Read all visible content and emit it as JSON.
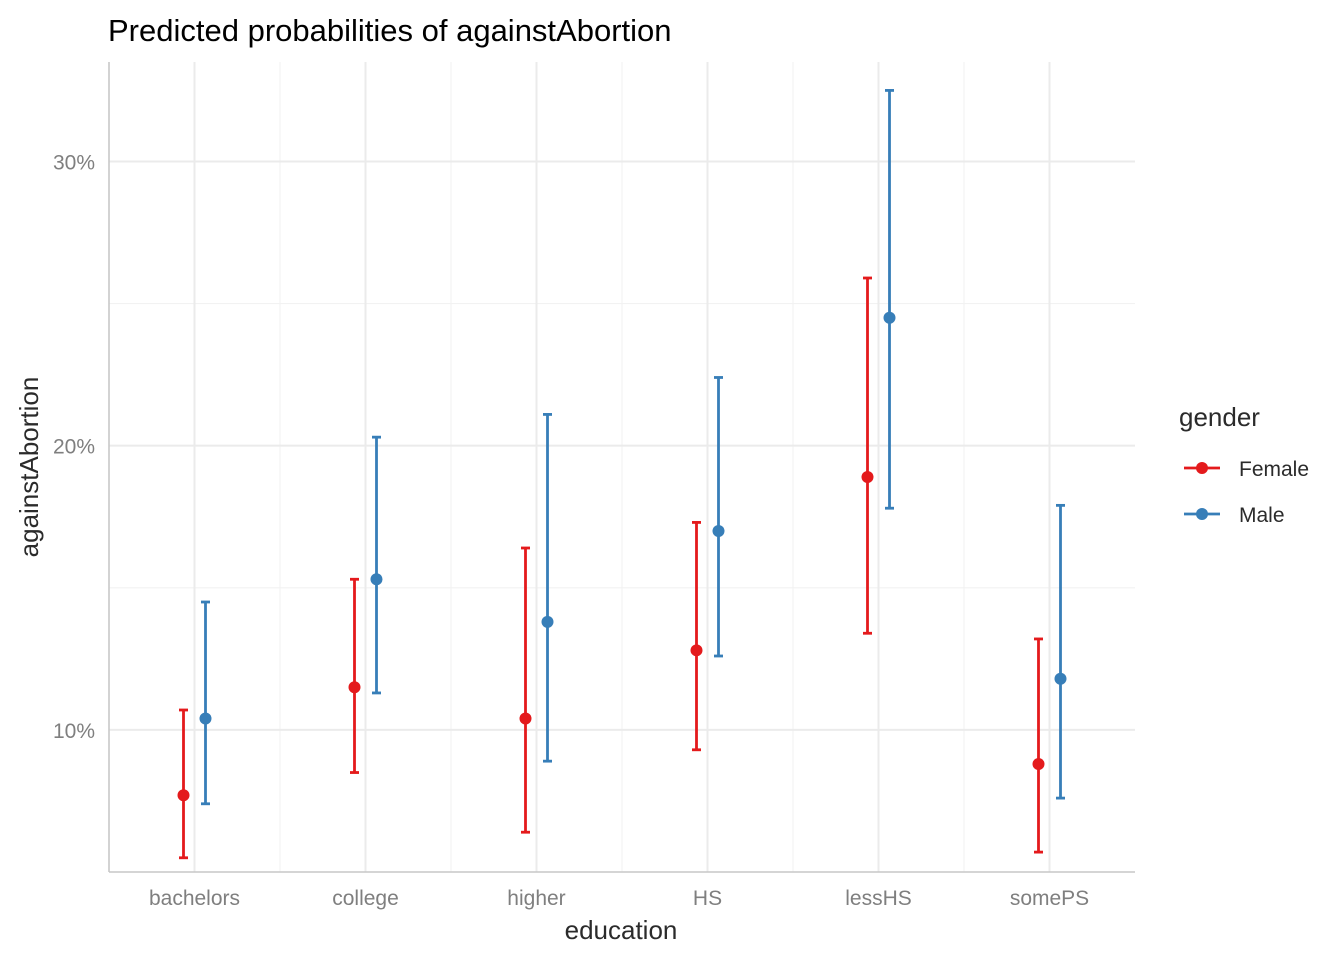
{
  "chart_data": {
    "type": "errorbar",
    "title": "Predicted probabilities of againstAbortion",
    "xlabel": "education",
    "ylabel": "againstAbortion",
    "categories": [
      "bachelors",
      "college",
      "higher",
      "HS",
      "lessHS",
      "somePS"
    ],
    "ylim": [
      0.05,
      0.335
    ],
    "y_ticks": [
      0.1,
      0.2,
      0.3
    ],
    "y_tick_labels": [
      "10%",
      "20%",
      "30%"
    ],
    "grid": true,
    "legend": {
      "title": "gender",
      "position": "right"
    },
    "series": [
      {
        "name": "Female",
        "color": "#E41A1C",
        "values": [
          0.077,
          0.115,
          0.104,
          0.128,
          0.189,
          0.088
        ],
        "lower": [
          0.055,
          0.085,
          0.064,
          0.093,
          0.134,
          0.057
        ],
        "upper": [
          0.107,
          0.153,
          0.164,
          0.173,
          0.259,
          0.132
        ]
      },
      {
        "name": "Male",
        "color": "#377EB8",
        "values": [
          0.104,
          0.153,
          0.138,
          0.17,
          0.245,
          0.118
        ],
        "lower": [
          0.074,
          0.113,
          0.089,
          0.126,
          0.178,
          0.076
        ],
        "upper": [
          0.145,
          0.203,
          0.211,
          0.224,
          0.325,
          0.179
        ]
      }
    ]
  }
}
